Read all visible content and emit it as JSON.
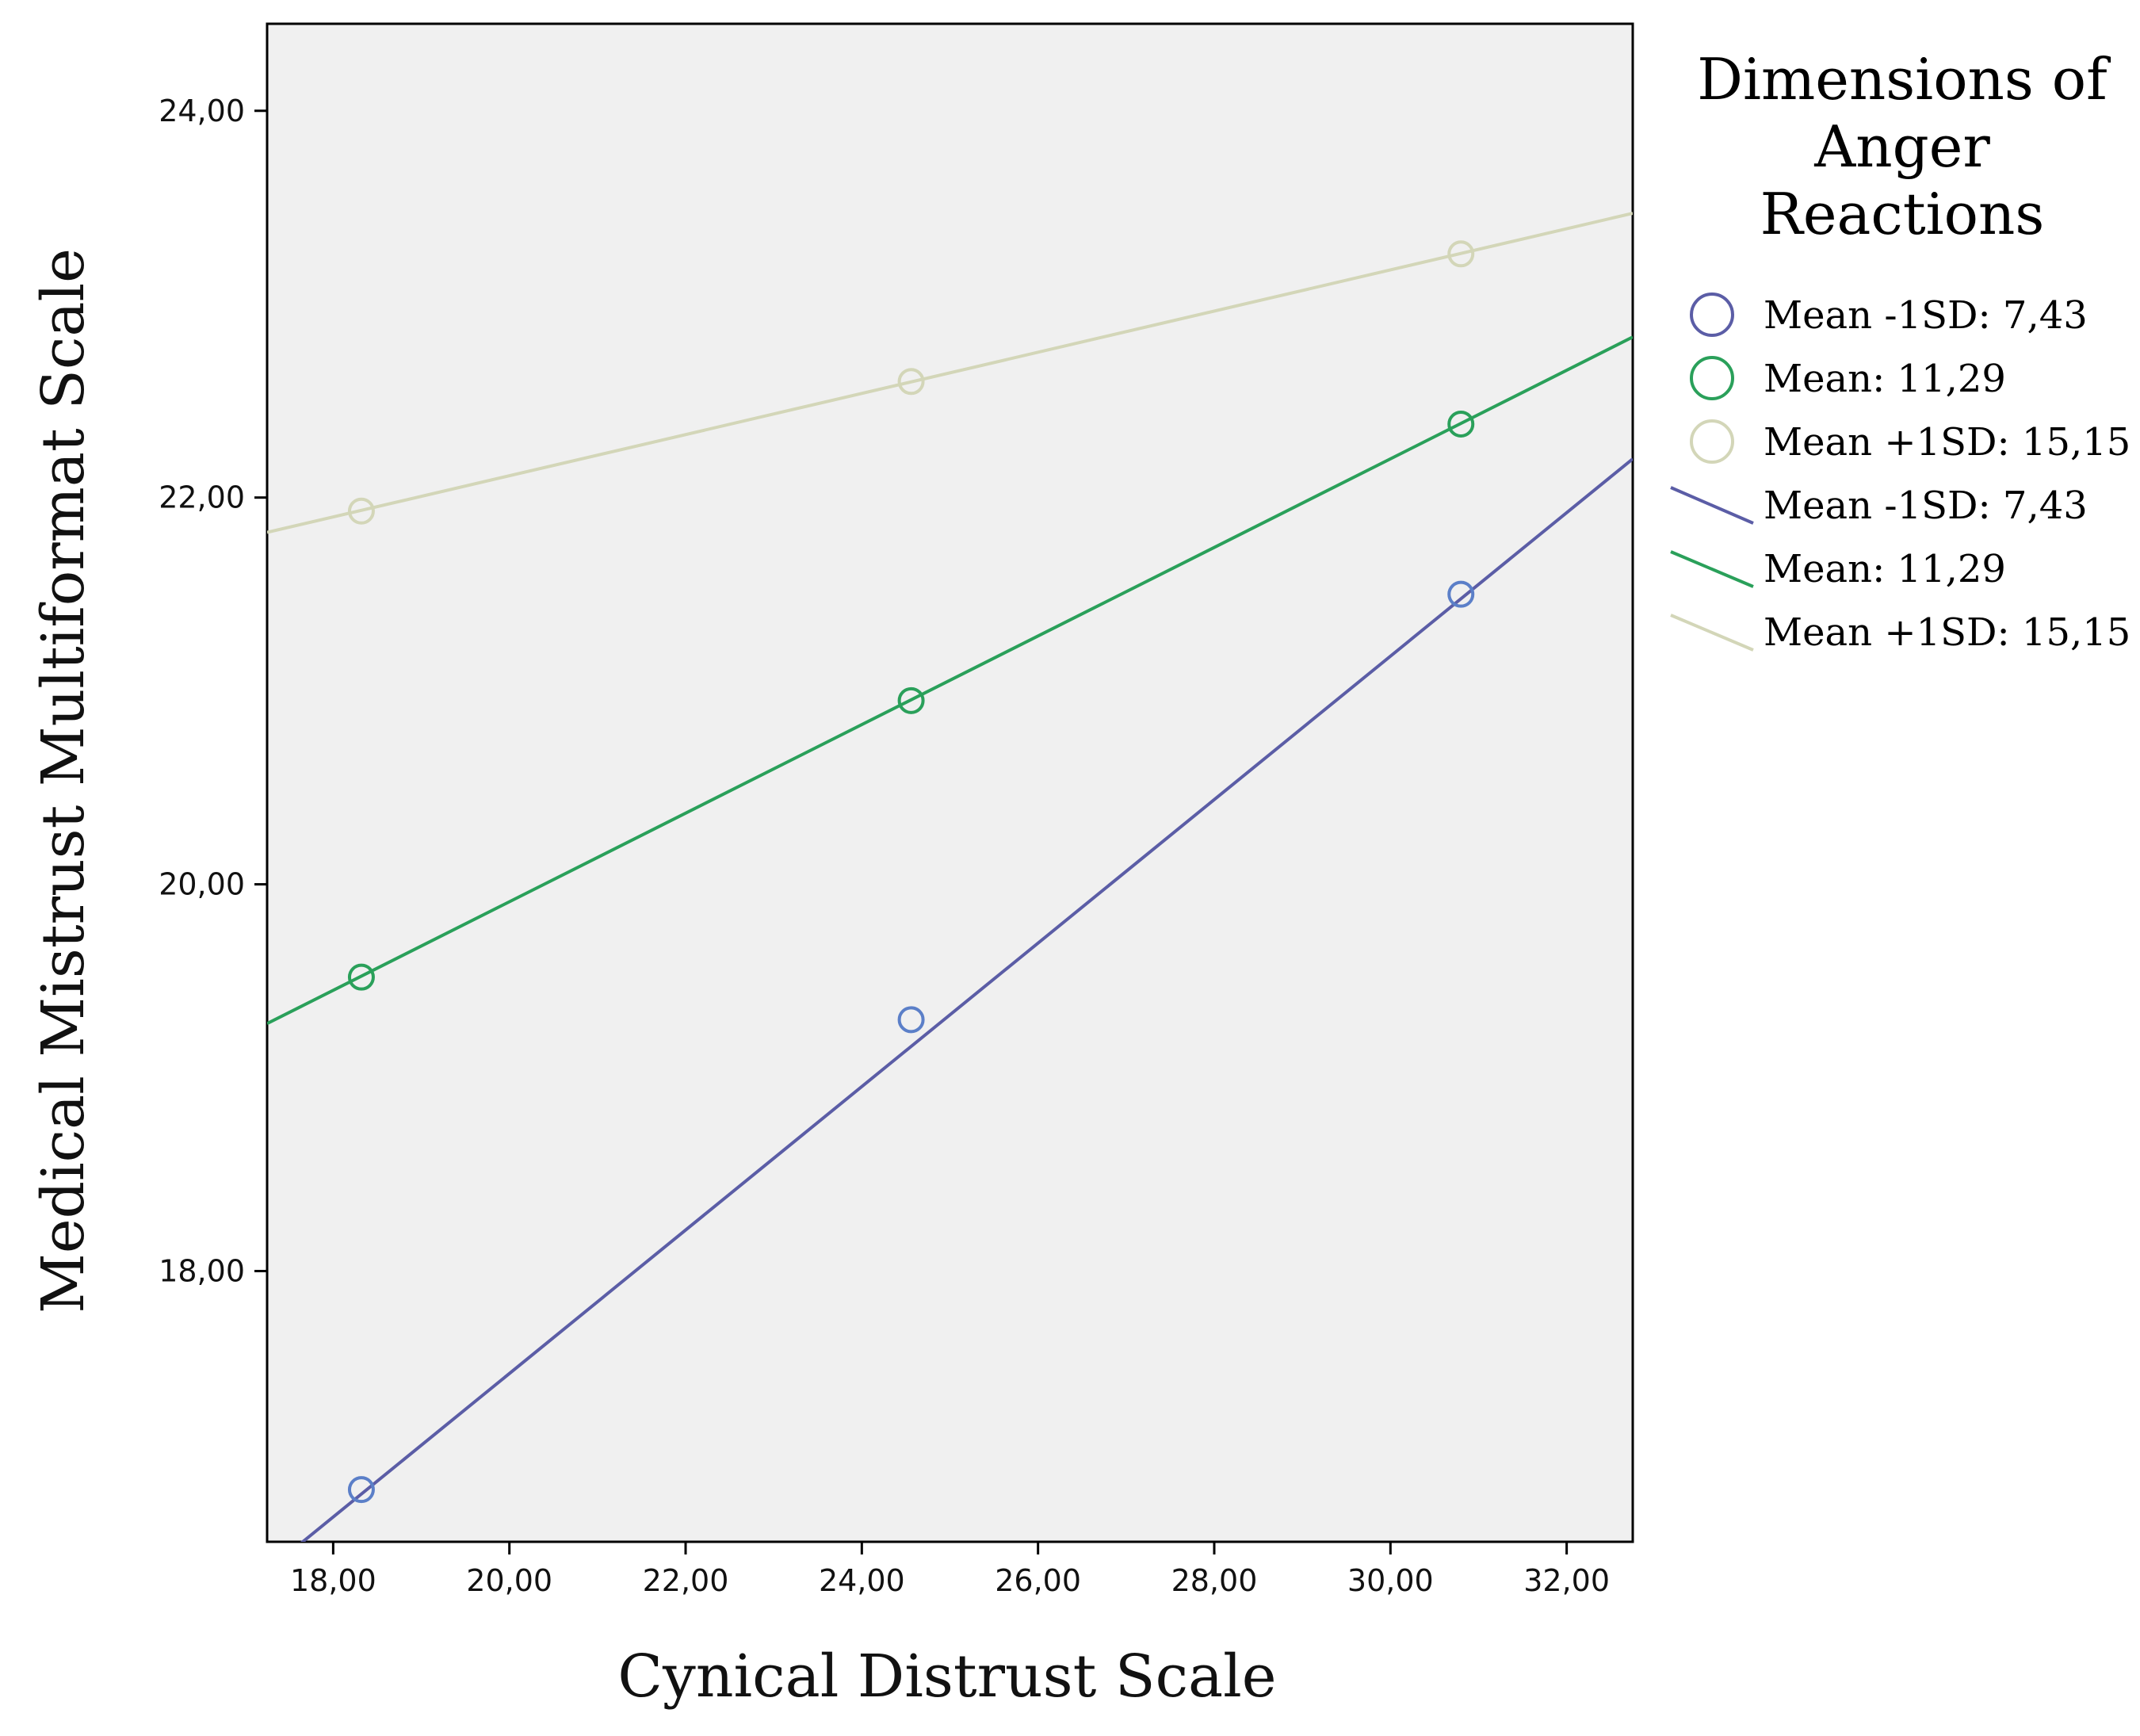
{
  "chart_data": {
    "type": "line",
    "xlabel": "Cynical Distrust Scale",
    "ylabel": "Medical Mistrust Multiformat Scale",
    "xlim": [
      17.25,
      32.75
    ],
    "ylim": [
      16.6,
      24.45
    ],
    "x_ticks": [
      18,
      20,
      22,
      24,
      26,
      28,
      30,
      32
    ],
    "y_ticks": [
      18,
      20,
      22,
      24
    ],
    "x_tick_labels": [
      "18,00",
      "20,00",
      "22,00",
      "24,00",
      "26,00",
      "28,00",
      "30,00",
      "32,00"
    ],
    "y_tick_labels": [
      "18,00",
      "20,00",
      "22,00",
      "24,00"
    ],
    "grid": false,
    "legend": {
      "title": [
        "Dimensions of",
        "Anger",
        "Reactions"
      ],
      "placement": "right",
      "marker_entries": [
        "Mean -1SD: 7,43",
        "Mean: 11,29",
        "Mean +1SD: 15,15"
      ],
      "line_entries": [
        "Mean -1SD: 7,43",
        "Mean: 11,29",
        "Mean +1SD: 15,15"
      ]
    },
    "series": [
      {
        "name": "Mean -1SD: 7,43",
        "color": "#5b5da6",
        "marker_color": "#5b7fc8",
        "points": [
          [
            18.32,
            16.87
          ],
          [
            24.56,
            19.3
          ],
          [
            30.8,
            21.5
          ]
        ],
        "line": [
          [
            17.25,
            16.45
          ],
          [
            32.75,
            22.2
          ]
        ]
      },
      {
        "name": "Mean: 11,29",
        "color": "#2aa05a",
        "marker_color": "#2aa05a",
        "points": [
          [
            18.32,
            19.52
          ],
          [
            24.56,
            20.95
          ],
          [
            30.8,
            22.38
          ]
        ],
        "line": [
          [
            17.25,
            19.28
          ],
          [
            32.75,
            22.83
          ]
        ]
      },
      {
        "name": "Mean +1SD: 15,15",
        "color": "#d3d6b8",
        "marker_color": "#d3d6b8",
        "points": [
          [
            18.32,
            21.93
          ],
          [
            24.56,
            22.6
          ],
          [
            30.8,
            23.26
          ]
        ],
        "line": [
          [
            17.25,
            21.82
          ],
          [
            32.75,
            23.47
          ]
        ]
      }
    ]
  }
}
